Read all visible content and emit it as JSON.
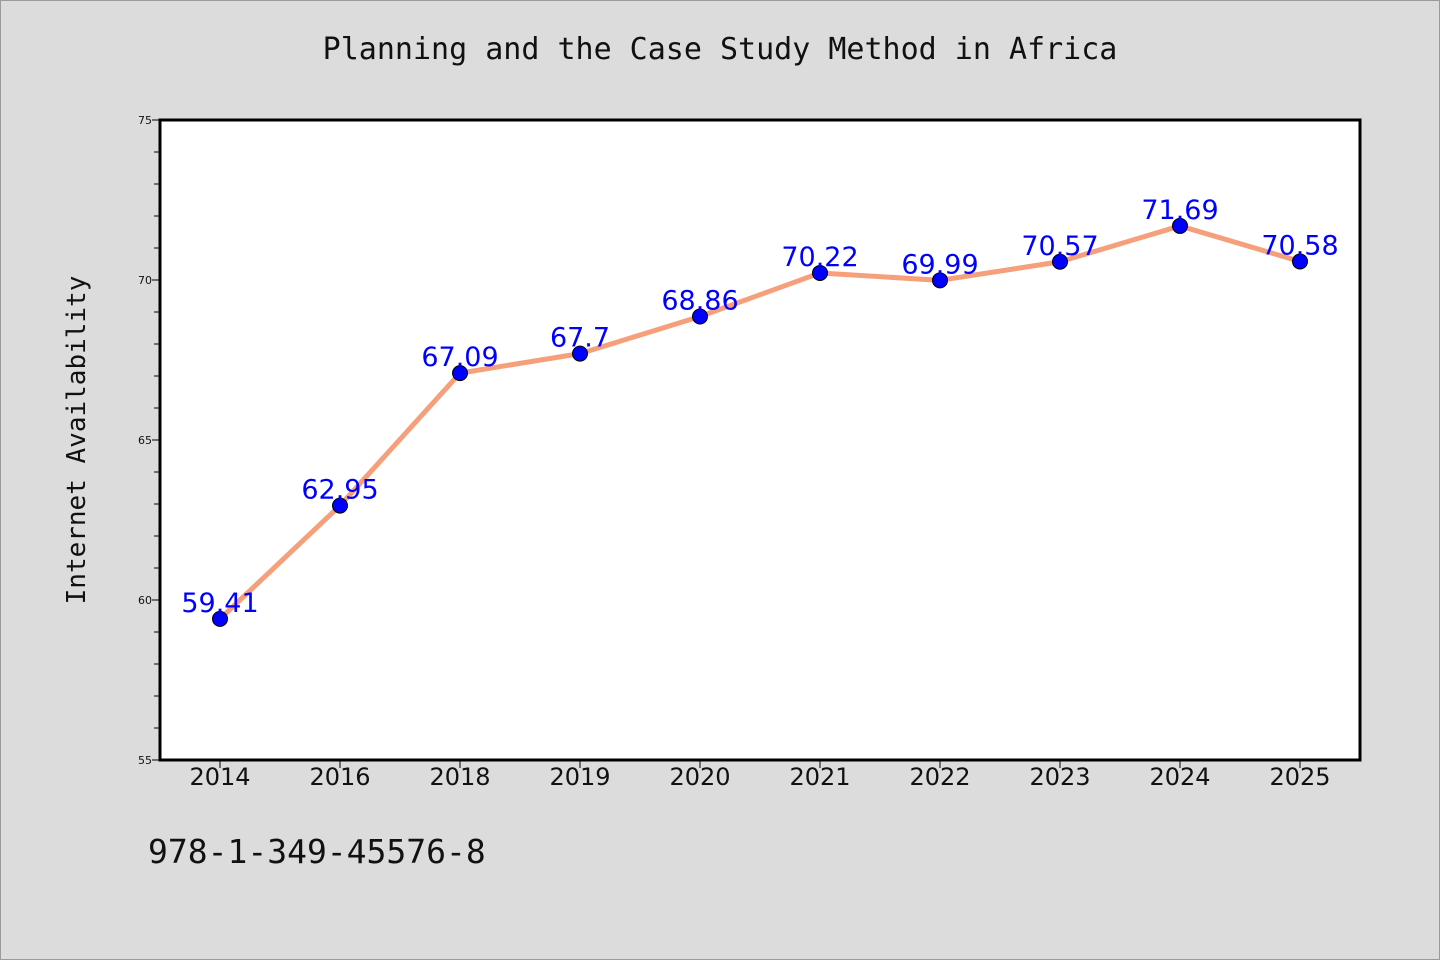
{
  "colors": {
    "background": "#dcdcdc",
    "plot_background": "#ffffff",
    "line": "#f5a07a",
    "marker": "#0000ff",
    "data_label": "#0000ff"
  },
  "footer": {
    "isbn": "978-1-349-45576-8"
  },
  "chart_data": {
    "type": "line",
    "title": "Planning and the Case Study Method in Africa",
    "xlabel": "",
    "ylabel": "Internet Availability",
    "categories": [
      "2014",
      "2016",
      "2018",
      "2019",
      "2020",
      "2021",
      "2022",
      "2023",
      "2024",
      "2025"
    ],
    "series": [
      {
        "values": [
          59.41,
          62.95,
          67.09,
          67.7,
          68.86,
          70.22,
          69.99,
          70.57,
          71.69,
          70.58
        ],
        "data_labels": [
          "59.41",
          "62.95",
          "67.09",
          "67.7",
          "68.86",
          "70.22",
          "69.99",
          "70.57",
          "71.69",
          "70.58"
        ]
      }
    ],
    "ylim": [
      55,
      75
    ],
    "yticks": [
      "55",
      "60",
      "65",
      "70",
      "75"
    ],
    "grid": false,
    "legend": "none"
  }
}
